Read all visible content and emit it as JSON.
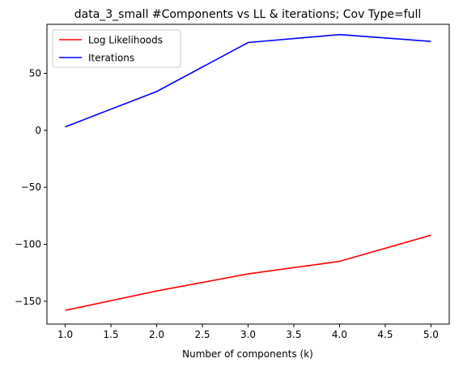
{
  "chart_data": {
    "type": "line",
    "title": "data_3_small #Components vs LL & iterations; Cov Type=full",
    "xlabel": "Number of components (k)",
    "ylabel": "",
    "x": [
      1,
      2,
      3,
      4,
      5
    ],
    "xlim": [
      0.8,
      5.2
    ],
    "ylim": [
      -170,
      93
    ],
    "xticks": [
      1.0,
      1.5,
      2.0,
      2.5,
      3.0,
      3.5,
      4.0,
      4.5,
      5.0
    ],
    "xtick_labels": [
      "1.0",
      "1.5",
      "2.0",
      "2.5",
      "3.0",
      "3.5",
      "4.0",
      "4.5",
      "5.0"
    ],
    "yticks": [
      -150,
      -100,
      -50,
      0,
      50
    ],
    "ytick_labels": [
      "−150",
      "−100",
      "−50",
      "0",
      "50"
    ],
    "grid": false,
    "legend_position": "top-left",
    "series": [
      {
        "name": "Log Likelihoods",
        "color": "#ff0000",
        "values": [
          -158,
          -141,
          -126,
          -115,
          -92
        ]
      },
      {
        "name": "Iterations",
        "color": "#0000ff",
        "values": [
          3,
          34,
          77,
          84,
          78
        ]
      }
    ]
  }
}
